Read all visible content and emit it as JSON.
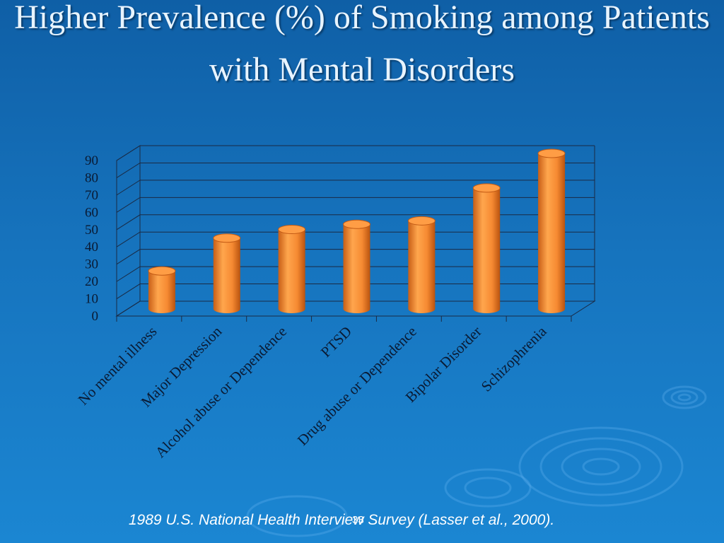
{
  "slide": {
    "title": "Higher Prevalence (%) of Smoking among Patients with Mental Disorders",
    "footer": "1989 U.S. National Health Interview Survey (Lasser et al., 2000).",
    "slide_number": "33",
    "colors": {
      "background": "#1673bd",
      "bar": "#f68a32",
      "gridline": "#1a2a44"
    }
  },
  "chart_data": {
    "type": "bar",
    "title": "",
    "xlabel": "",
    "ylabel": "",
    "categories": [
      "No mental illness",
      "Major Depression",
      "Alcohol abuse or Dependence",
      "PTSD",
      "Drug abuse or Dependence",
      "Bipolar Disorder",
      "Schizophrenia"
    ],
    "values": [
      22,
      41,
      46,
      49,
      51,
      70,
      90
    ],
    "ylim": [
      0,
      90
    ],
    "yticks": [
      0,
      10,
      20,
      30,
      40,
      50,
      60,
      70,
      80,
      90
    ],
    "grid": true,
    "legend": "none"
  }
}
